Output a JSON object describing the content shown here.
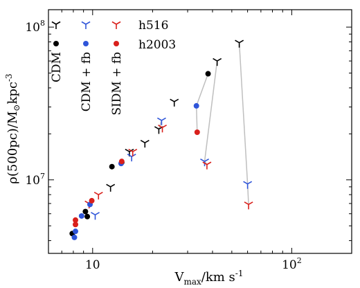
{
  "chart_data": {
    "type": "scatter",
    "xlabel": "V",
    "xlabel_sub": "max",
    "xlabel_unit": "/km s",
    "xlabel_unit_sup": "-1",
    "ylabel": "ρ(500pc)/M",
    "ylabel_sun": "⊙",
    "ylabel_unit": "kpc",
    "ylabel_unit_sup": "-3",
    "xscale": "log",
    "yscale": "log",
    "xlim": [
      6,
      200
    ],
    "ylim": [
      3300000.0,
      130000000.0
    ],
    "x_tick_labels": [
      "10",
      "10"
    ],
    "x_tick_label_sups": [
      "",
      "2"
    ],
    "y_tick_labels": [
      "10",
      "10"
    ],
    "y_tick_label_sups": [
      "7",
      "8"
    ],
    "legend": {
      "placement": "top-left",
      "halo_labels": [
        "h516",
        "h2003"
      ],
      "model_labels": [
        "CDM",
        "CDM + fb",
        "SIDM + fb"
      ]
    },
    "colors": {
      "CDM": "#000000",
      "CDM + fb": "#2f55d9",
      "SIDM + fb": "#d9201c",
      "connector": "#bfbfbf"
    },
    "series": [
      {
        "halo": "h516",
        "model": "CDM",
        "marker": "tri_down",
        "points": [
          [
            12.3,
            9000000.0
          ],
          [
            15.3,
            15300000.0
          ],
          [
            18.3,
            17500000.0
          ],
          [
            21.5,
            21500000.0
          ],
          [
            25.7,
            32500000.0
          ],
          [
            42.2,
            60000000.0
          ],
          [
            54.5,
            79000000.0
          ]
        ]
      },
      {
        "halo": "h516",
        "model": "CDM + fb",
        "marker": "tri_down",
        "points": [
          [
            10.3,
            5900000.0
          ],
          [
            15.7,
            14200000.0
          ],
          [
            22.2,
            24500000.0
          ],
          [
            36.5,
            13200000.0
          ],
          [
            60.0,
            9400000.0
          ]
        ]
      },
      {
        "halo": "h516",
        "model": "SIDM + fb",
        "marker": "tri_down",
        "points": [
          [
            9.6,
            7000000.0
          ],
          [
            10.7,
            8000000.0
          ],
          [
            15.9,
            15300000.0
          ],
          [
            22.4,
            22000000.0
          ],
          [
            37.5,
            12600000.0
          ],
          [
            60.7,
            6900000.0
          ]
        ]
      },
      {
        "halo": "h2003",
        "model": "CDM",
        "marker": "dot",
        "points": [
          [
            7.9,
            4450000.0
          ],
          [
            9.2,
            6200000.0
          ],
          [
            9.4,
            5750000.0
          ],
          [
            12.5,
            12200000.0
          ],
          [
            14.0,
            13000000.0
          ],
          [
            38.0,
            49500000.0
          ]
        ]
      },
      {
        "halo": "h2003",
        "model": "CDM + fb",
        "marker": "dot",
        "points": [
          [
            8.1,
            4200000.0
          ],
          [
            8.2,
            4600000.0
          ],
          [
            8.8,
            5800000.0
          ],
          [
            9.7,
            6900000.0
          ],
          [
            13.9,
            12800000.0
          ],
          [
            33.2,
            30500000.0
          ]
        ]
      },
      {
        "halo": "h2003",
        "model": "SIDM + fb",
        "marker": "dot",
        "points": [
          [
            8.2,
            5100000.0
          ],
          [
            8.2,
            5450000.0
          ],
          [
            9.9,
            7300000.0
          ],
          [
            14.0,
            13200000.0
          ],
          [
            33.5,
            20500000.0
          ]
        ]
      }
    ],
    "connectors": [
      [
        [
          21.5,
          21500000.0
        ],
        [
          22.2,
          24500000.0
        ]
      ],
      [
        [
          38.0,
          49500000.0
        ],
        [
          33.2,
          30500000.0
        ]
      ],
      [
        [
          33.2,
          30500000.0
        ],
        [
          33.5,
          20500000.0
        ]
      ],
      [
        [
          42.2,
          60000000.0
        ],
        [
          36.5,
          13200000.0
        ]
      ],
      [
        [
          36.5,
          13200000.0
        ],
        [
          37.5,
          12600000.0
        ]
      ],
      [
        [
          54.5,
          79000000.0
        ],
        [
          60.0,
          9400000.0
        ]
      ],
      [
        [
          60.0,
          9400000.0
        ],
        [
          60.7,
          6900000.0
        ]
      ]
    ]
  }
}
